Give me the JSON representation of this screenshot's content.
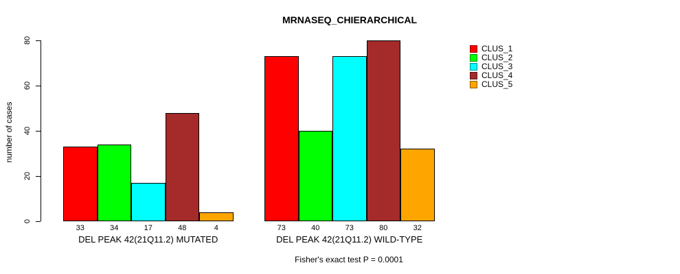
{
  "chart_data": {
    "type": "bar",
    "title": "MRNASEQ_CHIERARCHICAL",
    "xlabel": "",
    "ylabel": "number of cases",
    "ylim": [
      0,
      80
    ],
    "yticks": [
      0,
      20,
      40,
      60,
      80
    ],
    "grid": false,
    "legend_position": "right",
    "categories": [
      "DEL PEAK 42(21Q11.2) MUTATED",
      "DEL PEAK 42(21Q11.2) WILD-TYPE"
    ],
    "series": [
      {
        "name": "CLUS_1",
        "color": "#FF0000",
        "values": [
          33,
          73
        ]
      },
      {
        "name": "CLUS_2",
        "color": "#00FF00",
        "values": [
          34,
          40
        ]
      },
      {
        "name": "CLUS_3",
        "color": "#00FFFF",
        "values": [
          17,
          73
        ]
      },
      {
        "name": "CLUS_4",
        "color": "#A52A2A",
        "values": [
          48,
          80
        ]
      },
      {
        "name": "CLUS_5",
        "color": "#FFA500",
        "values": [
          4,
          32
        ]
      }
    ],
    "bar_value_labels": [
      [
        "33",
        "34",
        "17",
        "48",
        "4"
      ],
      [
        "73",
        "40",
        "73",
        "80",
        "32"
      ]
    ],
    "annotation": "Fisher's exact test P = 0.0001"
  }
}
